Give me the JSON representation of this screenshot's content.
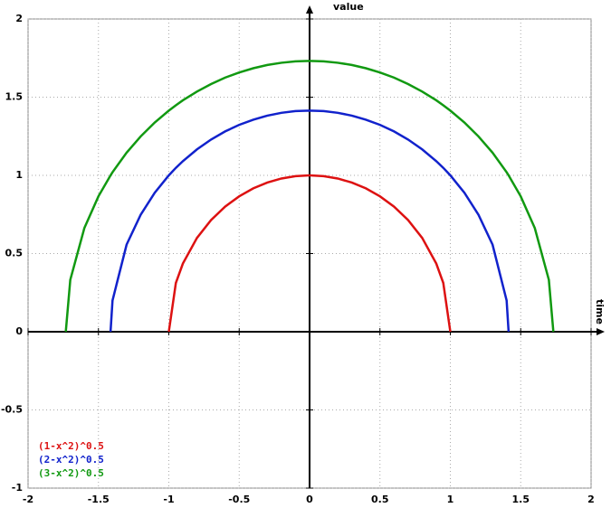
{
  "chart_data": {
    "type": "line",
    "xlabel": "time",
    "ylabel": "value",
    "x": [
      -1.732,
      -1.7,
      -1.6,
      -1.5,
      -1.414,
      -1.4,
      -1.3,
      -1.2,
      -1.1,
      -1,
      -0.95,
      -0.9,
      -0.8,
      -0.7,
      -0.6,
      -0.5,
      -0.4,
      -0.3,
      -0.2,
      -0.1,
      0,
      0.1,
      0.2,
      0.3,
      0.4,
      0.5,
      0.6,
      0.7,
      0.8,
      0.9,
      0.95,
      1,
      1.1,
      1.2,
      1.3,
      1.4,
      1.414,
      1.5,
      1.6,
      1.7,
      1.732
    ],
    "series": [
      {
        "name": "(1-x^2)^0.5",
        "color": "#dd1111",
        "values": [
          null,
          null,
          null,
          null,
          null,
          null,
          null,
          null,
          null,
          0,
          0.312,
          0.436,
          0.6,
          0.714,
          0.8,
          0.866,
          0.917,
          0.954,
          0.98,
          0.995,
          1,
          0.995,
          0.98,
          0.954,
          0.917,
          0.866,
          0.8,
          0.714,
          0.6,
          0.436,
          0.312,
          0,
          null,
          null,
          null,
          null,
          null,
          null,
          null,
          null,
          null
        ]
      },
      {
        "name": "(2-x^2)^0.5",
        "color": "#1122cc",
        "values": [
          null,
          null,
          null,
          null,
          0,
          0.2,
          0.557,
          0.748,
          0.889,
          1,
          1.048,
          1.091,
          1.166,
          1.229,
          1.281,
          1.323,
          1.356,
          1.382,
          1.4,
          1.411,
          1.414,
          1.411,
          1.4,
          1.382,
          1.356,
          1.323,
          1.281,
          1.229,
          1.166,
          1.091,
          1.048,
          1,
          0.889,
          0.748,
          0.557,
          0.2,
          0,
          null,
          null,
          null,
          null
        ]
      },
      {
        "name": "(3-x^2)^0.5",
        "color": "#119911",
        "values": [
          0,
          0.332,
          0.663,
          0.866,
          1.0,
          1.02,
          1.145,
          1.249,
          1.338,
          1.414,
          1.448,
          1.48,
          1.536,
          1.584,
          1.625,
          1.658,
          1.685,
          1.706,
          1.72,
          1.729,
          1.732,
          1.729,
          1.72,
          1.706,
          1.685,
          1.658,
          1.625,
          1.584,
          1.536,
          1.48,
          1.448,
          1.414,
          1.338,
          1.249,
          1.145,
          1.02,
          1.0,
          0.866,
          0.663,
          0.332,
          0
        ]
      }
    ],
    "xlim": [
      -2,
      2
    ],
    "ylim": [
      -1,
      2
    ],
    "xticks": [
      -2,
      -1.5,
      -1,
      -0.5,
      0,
      0.5,
      1,
      1.5,
      2
    ],
    "yticks": [
      -1,
      -0.5,
      0,
      0.5,
      1,
      1.5,
      2
    ],
    "grid": true,
    "legend": "lower left"
  }
}
